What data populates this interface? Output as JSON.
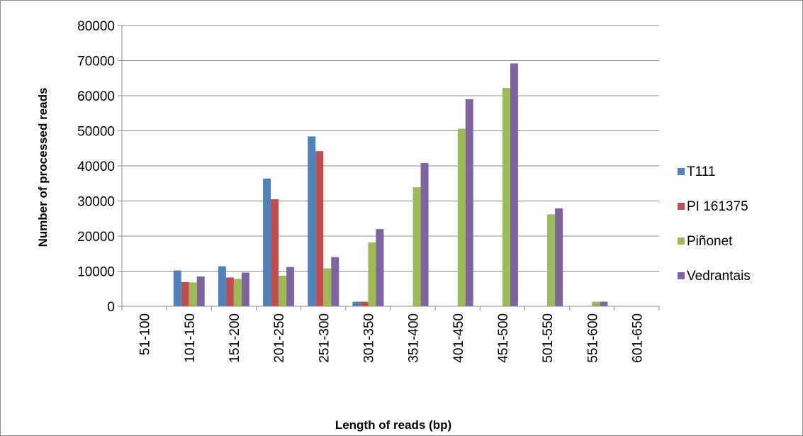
{
  "chart_data": {
    "type": "bar",
    "title": "",
    "xlabel": "Length of reads (bp)",
    "ylabel": "Number  of processed reads",
    "ylim": [
      0,
      80000
    ],
    "yticks": [
      0,
      10000,
      20000,
      30000,
      40000,
      50000,
      60000,
      70000,
      80000
    ],
    "grid": "horizontal",
    "legend_position": "right",
    "categories": [
      "51-100",
      "101-150",
      "151-200",
      "201-250",
      "251-300",
      "301-350",
      "351-400",
      "401-450",
      "451-500",
      "501-550",
      "551-600",
      "601-650"
    ],
    "series": [
      {
        "name": "T111",
        "color": "#4f81bd",
        "values": [
          0,
          10200,
          11400,
          36400,
          48400,
          1300,
          0,
          0,
          0,
          0,
          0,
          0
        ]
      },
      {
        "name": "PI 161375",
        "color": "#c0504d",
        "values": [
          0,
          6900,
          8200,
          30500,
          44200,
          1300,
          0,
          0,
          0,
          0,
          0,
          0
        ]
      },
      {
        "name": "Piñonet",
        "color": "#9bbb59",
        "values": [
          0,
          6800,
          7800,
          8700,
          10800,
          18200,
          33900,
          50600,
          62200,
          26200,
          1300,
          0
        ]
      },
      {
        "name": "Vedrantais",
        "color": "#8064a2",
        "values": [
          0,
          8500,
          9600,
          11200,
          14000,
          22000,
          40800,
          59000,
          69200,
          27900,
          1300,
          0
        ]
      }
    ]
  }
}
